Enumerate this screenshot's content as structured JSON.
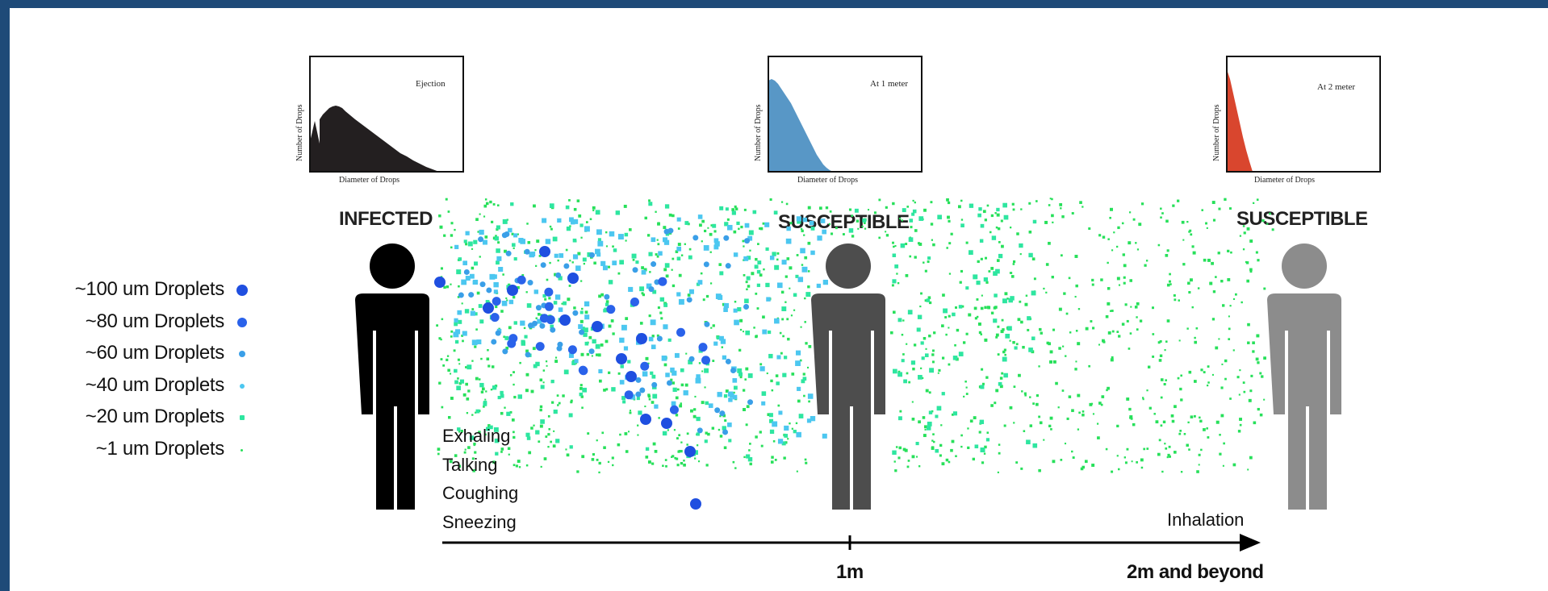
{
  "legend": [
    {
      "label": "~100 um Droplets",
      "color": "#1f4fe0",
      "size": 14
    },
    {
      "label": "~80 um Droplets",
      "color": "#2a62ea",
      "size": 12
    },
    {
      "label": "~60 um Droplets",
      "color": "#3a9fe8",
      "size": 8
    },
    {
      "label": "~40 um Droplets",
      "color": "#4cc7f0",
      "size": 6
    },
    {
      "label": "~20 um Droplets",
      "color": "#2ee6a0",
      "size": 6
    },
    {
      "label": "~1 um Droplets",
      "color": "#27e05a",
      "size": 3
    }
  ],
  "people": [
    {
      "label": "INFECTED",
      "color": "#000000"
    },
    {
      "label": "SUSCEPTIBLE",
      "color": "#4d4d4d"
    },
    {
      "label": "SUSCEPTIBLE",
      "color": "#8c8c8c"
    }
  ],
  "histograms": [
    {
      "title": "Ejection",
      "ylabel": "Number of Drops",
      "xlabel": "Diameter of Drops",
      "color": "#231f20"
    },
    {
      "title": "At 1 meter",
      "ylabel": "Number of Drops",
      "xlabel": "Diameter of Drops",
      "color": "#5897c6"
    },
    {
      "title": "At 2 meter",
      "ylabel": "Number of Drops",
      "xlabel": "Diameter of Drops",
      "color": "#d9462e"
    }
  ],
  "actions": [
    "Exhaling",
    "Talking",
    "Coughing",
    "Sneezing"
  ],
  "axis": {
    "mark_1": "1m",
    "mark_2": "2m and beyond",
    "inhalation": "Inhalation"
  }
}
